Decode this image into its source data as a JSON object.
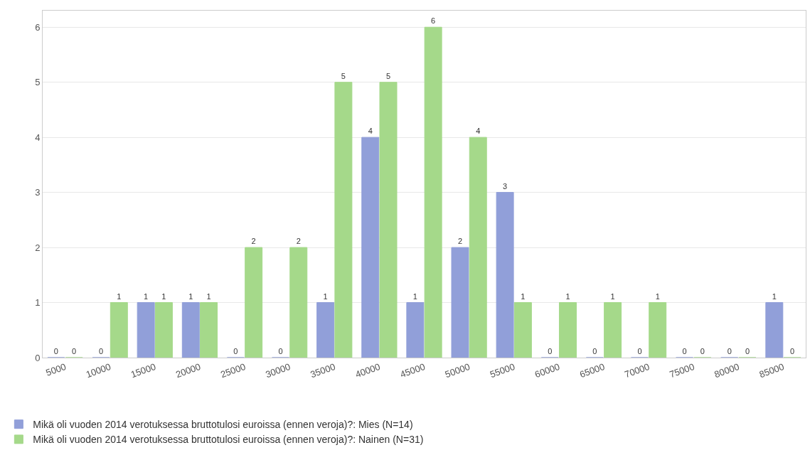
{
  "chart_data": {
    "type": "bar",
    "categories": [
      "5000",
      "10000",
      "15000",
      "20000",
      "25000",
      "30000",
      "35000",
      "40000",
      "45000",
      "50000",
      "55000",
      "60000",
      "65000",
      "70000",
      "75000",
      "80000",
      "85000"
    ],
    "series": [
      {
        "name": "Mikä oli vuoden 2014 verotuksessa bruttotulosi euroissa (ennen veroja)?: Mies (N=14)",
        "color": "#919fd9",
        "values": [
          0,
          0,
          1,
          1,
          0,
          0,
          1,
          4,
          1,
          2,
          3,
          0,
          0,
          0,
          0,
          0,
          1
        ]
      },
      {
        "name": "Mikä oli vuoden 2014 verotuksessa bruttotulosi euroissa (ennen veroja)?: Nainen (N=31)",
        "color": "#a5d98a",
        "values": [
          0,
          1,
          1,
          1,
          2,
          2,
          5,
          5,
          6,
          4,
          1,
          1,
          1,
          1,
          0,
          0,
          0
        ]
      }
    ],
    "ylim": [
      0,
      6.3
    ],
    "yticks": [
      0,
      1,
      2,
      3,
      4,
      5,
      6
    ],
    "grid": "y",
    "legend": "bottom left",
    "data_labels": true
  }
}
